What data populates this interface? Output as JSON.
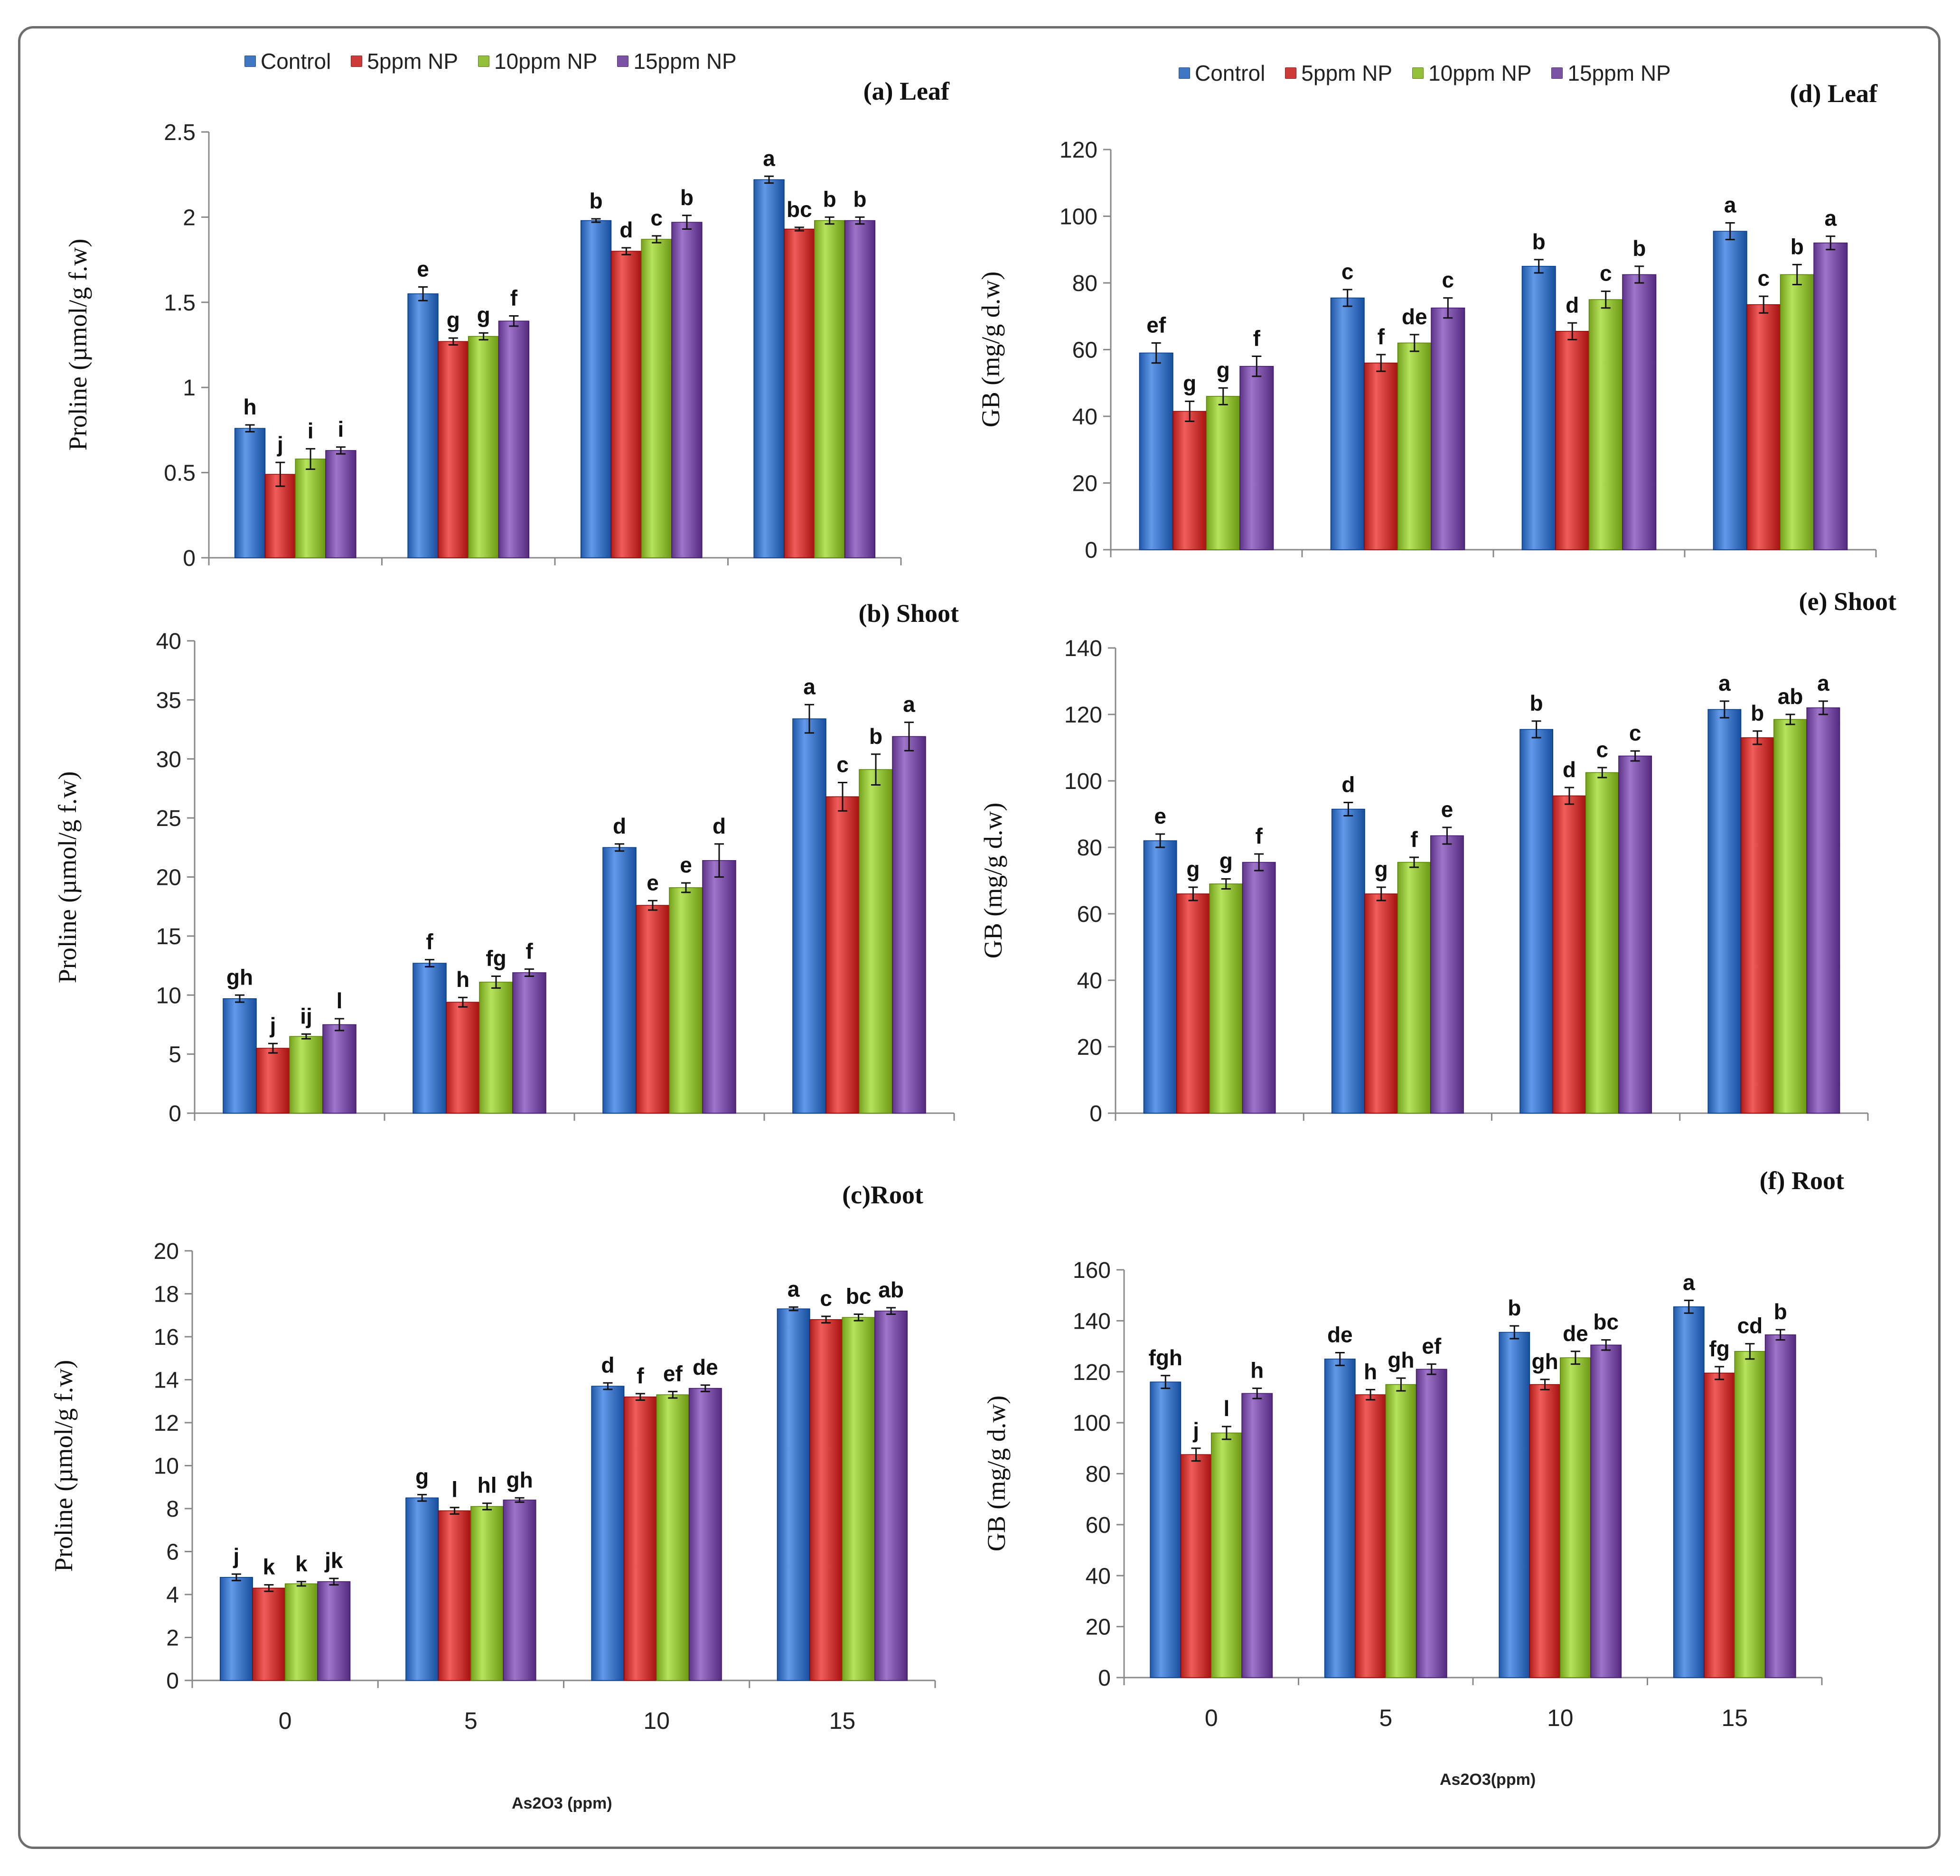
{
  "colors": {
    "control": "#3f76c5",
    "np5": "#cd3a37",
    "np10": "#93bf3a",
    "np15": "#7c52a6"
  },
  "legend": {
    "left": [
      "Control",
      "5ppm NP",
      "10ppm NP",
      "15ppm NP"
    ],
    "right": [
      "Control",
      "5ppm NP",
      "10ppm NP",
      "15ppm NP"
    ]
  },
  "x_axis_titles": {
    "left": "As2O3 (ppm)",
    "right": "As2O3(ppm)"
  },
  "chart_data": [
    {
      "id": "a",
      "type": "bar",
      "title": "(a)  Leaf",
      "ylabel": "Proline (µmol/g f.w)",
      "ylim": [
        0,
        2.5
      ],
      "yticks": [
        "0",
        "0.5",
        "1",
        "1.5",
        "2",
        "2.5"
      ],
      "categories": [
        "0",
        "5",
        "10",
        "15"
      ],
      "series": [
        {
          "name": "Control",
          "values": [
            0.76,
            1.55,
            1.98,
            2.22
          ],
          "errors": [
            0.02,
            0.04,
            0.01,
            0.02
          ],
          "letters": [
            "h",
            "e",
            "b",
            "a"
          ]
        },
        {
          "name": "5ppm NP",
          "values": [
            0.49,
            1.27,
            1.8,
            1.93
          ],
          "errors": [
            0.07,
            0.02,
            0.02,
            0.01
          ],
          "letters": [
            "j",
            "g",
            "d",
            "bc"
          ]
        },
        {
          "name": "10ppm NP",
          "values": [
            0.58,
            1.3,
            1.87,
            1.98
          ],
          "errors": [
            0.06,
            0.02,
            0.02,
            0.02
          ],
          "letters": [
            "i",
            "g",
            "c",
            "b"
          ]
        },
        {
          "name": "15ppm NP",
          "values": [
            0.63,
            1.39,
            1.97,
            1.98
          ],
          "errors": [
            0.02,
            0.03,
            0.04,
            0.02
          ],
          "letters": [
            "i",
            "f",
            "b",
            "b"
          ]
        }
      ]
    },
    {
      "id": "b",
      "type": "bar",
      "title": "(b) Shoot",
      "ylabel": "Proline (µmol/g f.w)",
      "ylim": [
        0,
        40
      ],
      "yticks": [
        "0",
        "5",
        "10",
        "15",
        "20",
        "25",
        "30",
        "35",
        "40"
      ],
      "categories": [
        "0",
        "5",
        "10",
        "15"
      ],
      "series": [
        {
          "name": "Control",
          "values": [
            9.7,
            12.7,
            22.5,
            33.4
          ],
          "errors": [
            0.3,
            0.3,
            0.3,
            1.2
          ],
          "letters": [
            "gh",
            "f",
            "d",
            "a"
          ]
        },
        {
          "name": "5ppm NP",
          "values": [
            5.5,
            9.4,
            17.6,
            26.8
          ],
          "errors": [
            0.4,
            0.4,
            0.4,
            1.2
          ],
          "letters": [
            "j",
            "h",
            "e",
            "c"
          ]
        },
        {
          "name": "10ppm NP",
          "values": [
            6.5,
            11.1,
            19.1,
            29.1
          ],
          "errors": [
            0.2,
            0.5,
            0.4,
            1.3
          ],
          "letters": [
            "ij",
            "fg",
            "e",
            "b"
          ]
        },
        {
          "name": "15ppm NP",
          "values": [
            7.5,
            11.9,
            21.4,
            31.9
          ],
          "errors": [
            0.5,
            0.3,
            1.4,
            1.2
          ],
          "letters": [
            "l",
            "f",
            "d",
            "a"
          ]
        }
      ]
    },
    {
      "id": "c",
      "type": "bar",
      "title": "(c)Root",
      "ylabel": "Proline (µmol/g f.w)",
      "ylim": [
        0,
        20
      ],
      "yticks": [
        "0",
        "2",
        "4",
        "6",
        "8",
        "10",
        "12",
        "14",
        "16",
        "18",
        "20"
      ],
      "categories": [
        "0",
        "5",
        "10",
        "15"
      ],
      "series": [
        {
          "name": "Control",
          "values": [
            4.8,
            8.5,
            13.7,
            17.3
          ],
          "errors": [
            0.15,
            0.15,
            0.15,
            0.08
          ],
          "letters": [
            "j",
            "g",
            "d",
            "a"
          ]
        },
        {
          "name": "5ppm NP",
          "values": [
            4.3,
            7.9,
            13.2,
            16.8
          ],
          "errors": [
            0.15,
            0.15,
            0.15,
            0.15
          ],
          "letters": [
            "k",
            "l",
            "f",
            "c"
          ]
        },
        {
          "name": "10ppm NP",
          "values": [
            4.5,
            8.1,
            13.3,
            16.9
          ],
          "errors": [
            0.1,
            0.15,
            0.15,
            0.15
          ],
          "letters": [
            "k",
            "hl",
            "ef",
            "bc"
          ]
        },
        {
          "name": "15ppm NP",
          "values": [
            4.6,
            8.4,
            13.6,
            17.2
          ],
          "errors": [
            0.15,
            0.1,
            0.15,
            0.15
          ],
          "letters": [
            "jk",
            "gh",
            "de",
            "ab"
          ]
        }
      ]
    },
    {
      "id": "d",
      "type": "bar",
      "title": "(d) Leaf",
      "ylabel": "GB (mg/g  d.w)",
      "ylim": [
        0,
        120
      ],
      "yticks": [
        "0",
        "20",
        "40",
        "60",
        "80",
        "100",
        "120"
      ],
      "categories": [
        "0",
        "5",
        "10",
        "15"
      ],
      "series": [
        {
          "name": "Control",
          "values": [
            59,
            75.5,
            85,
            95.5
          ],
          "errors": [
            3,
            2.5,
            2,
            2.5
          ],
          "letters": [
            "ef",
            "c",
            "b",
            "a"
          ]
        },
        {
          "name": "5ppm NP",
          "values": [
            41.5,
            56,
            65.5,
            73.5
          ],
          "errors": [
            3,
            2.5,
            2.5,
            2.5
          ],
          "letters": [
            "g",
            "f",
            "d",
            "c"
          ]
        },
        {
          "name": "10ppm NP",
          "values": [
            46,
            62,
            75,
            82.5
          ],
          "errors": [
            2.5,
            2.5,
            2.5,
            3
          ],
          "letters": [
            "g",
            "de",
            "c",
            "b"
          ]
        },
        {
          "name": "15ppm NP",
          "values": [
            55,
            72.5,
            82.5,
            92
          ],
          "errors": [
            3,
            3,
            2.5,
            2
          ],
          "letters": [
            "f",
            "c",
            "b",
            "a"
          ]
        }
      ]
    },
    {
      "id": "e",
      "type": "bar",
      "title": "(e) Shoot",
      "ylabel": "GB (mg/g  d.w)",
      "ylim": [
        0,
        140
      ],
      "yticks": [
        "0",
        "20",
        "40",
        "60",
        "80",
        "100",
        "120",
        "140"
      ],
      "categories": [
        "0",
        "5",
        "10",
        "15"
      ],
      "series": [
        {
          "name": "Control",
          "values": [
            82,
            91.5,
            115.5,
            121.5
          ],
          "errors": [
            2,
            2,
            2.5,
            2.5
          ],
          "letters": [
            "e",
            "d",
            "b",
            "a"
          ]
        },
        {
          "name": "5ppm NP",
          "values": [
            66,
            66,
            95.5,
            113
          ],
          "errors": [
            2,
            2,
            2.5,
            2
          ],
          "letters": [
            "g",
            "g",
            "d",
            "b"
          ]
        },
        {
          "name": "10ppm NP",
          "values": [
            69,
            75.5,
            102.5,
            118.5
          ],
          "errors": [
            1.5,
            1.5,
            1.5,
            1.5
          ],
          "letters": [
            "g",
            "f",
            "c",
            "ab"
          ]
        },
        {
          "name": "15ppm NP",
          "values": [
            75.5,
            83.5,
            107.5,
            122
          ],
          "errors": [
            2.5,
            2.5,
            1.5,
            2
          ],
          "letters": [
            "f",
            "e",
            "c",
            "a"
          ]
        }
      ]
    },
    {
      "id": "f",
      "type": "bar",
      "title": "(f) Root",
      "ylabel": "GB (mg/g  d.w)",
      "ylim": [
        0,
        160
      ],
      "yticks": [
        "0",
        "20",
        "40",
        "60",
        "80",
        "100",
        "120",
        "140",
        "160"
      ],
      "categories": [
        "0",
        "5",
        "10",
        "15"
      ],
      "series": [
        {
          "name": "Control",
          "values": [
            116,
            125,
            135.5,
            145.5
          ],
          "errors": [
            2.5,
            2.5,
            2.5,
            2.5
          ],
          "letters": [
            "fgh",
            "de",
            "b",
            "a"
          ]
        },
        {
          "name": "5ppm NP",
          "values": [
            87.5,
            111,
            115,
            119.5
          ],
          "errors": [
            2.5,
            2,
            2,
            2.5
          ],
          "letters": [
            "j",
            "h",
            "gh",
            "fg"
          ]
        },
        {
          "name": "10ppm NP",
          "values": [
            96,
            115,
            125.5,
            128
          ],
          "errors": [
            2.5,
            2.5,
            2.5,
            3
          ],
          "letters": [
            "l",
            "gh",
            "de",
            "cd"
          ]
        },
        {
          "name": "15ppm NP",
          "values": [
            111.5,
            121,
            130.5,
            134.5
          ],
          "errors": [
            2,
            2,
            2,
            2
          ],
          "letters": [
            "h",
            "ef",
            "bc",
            "b"
          ]
        }
      ]
    }
  ]
}
